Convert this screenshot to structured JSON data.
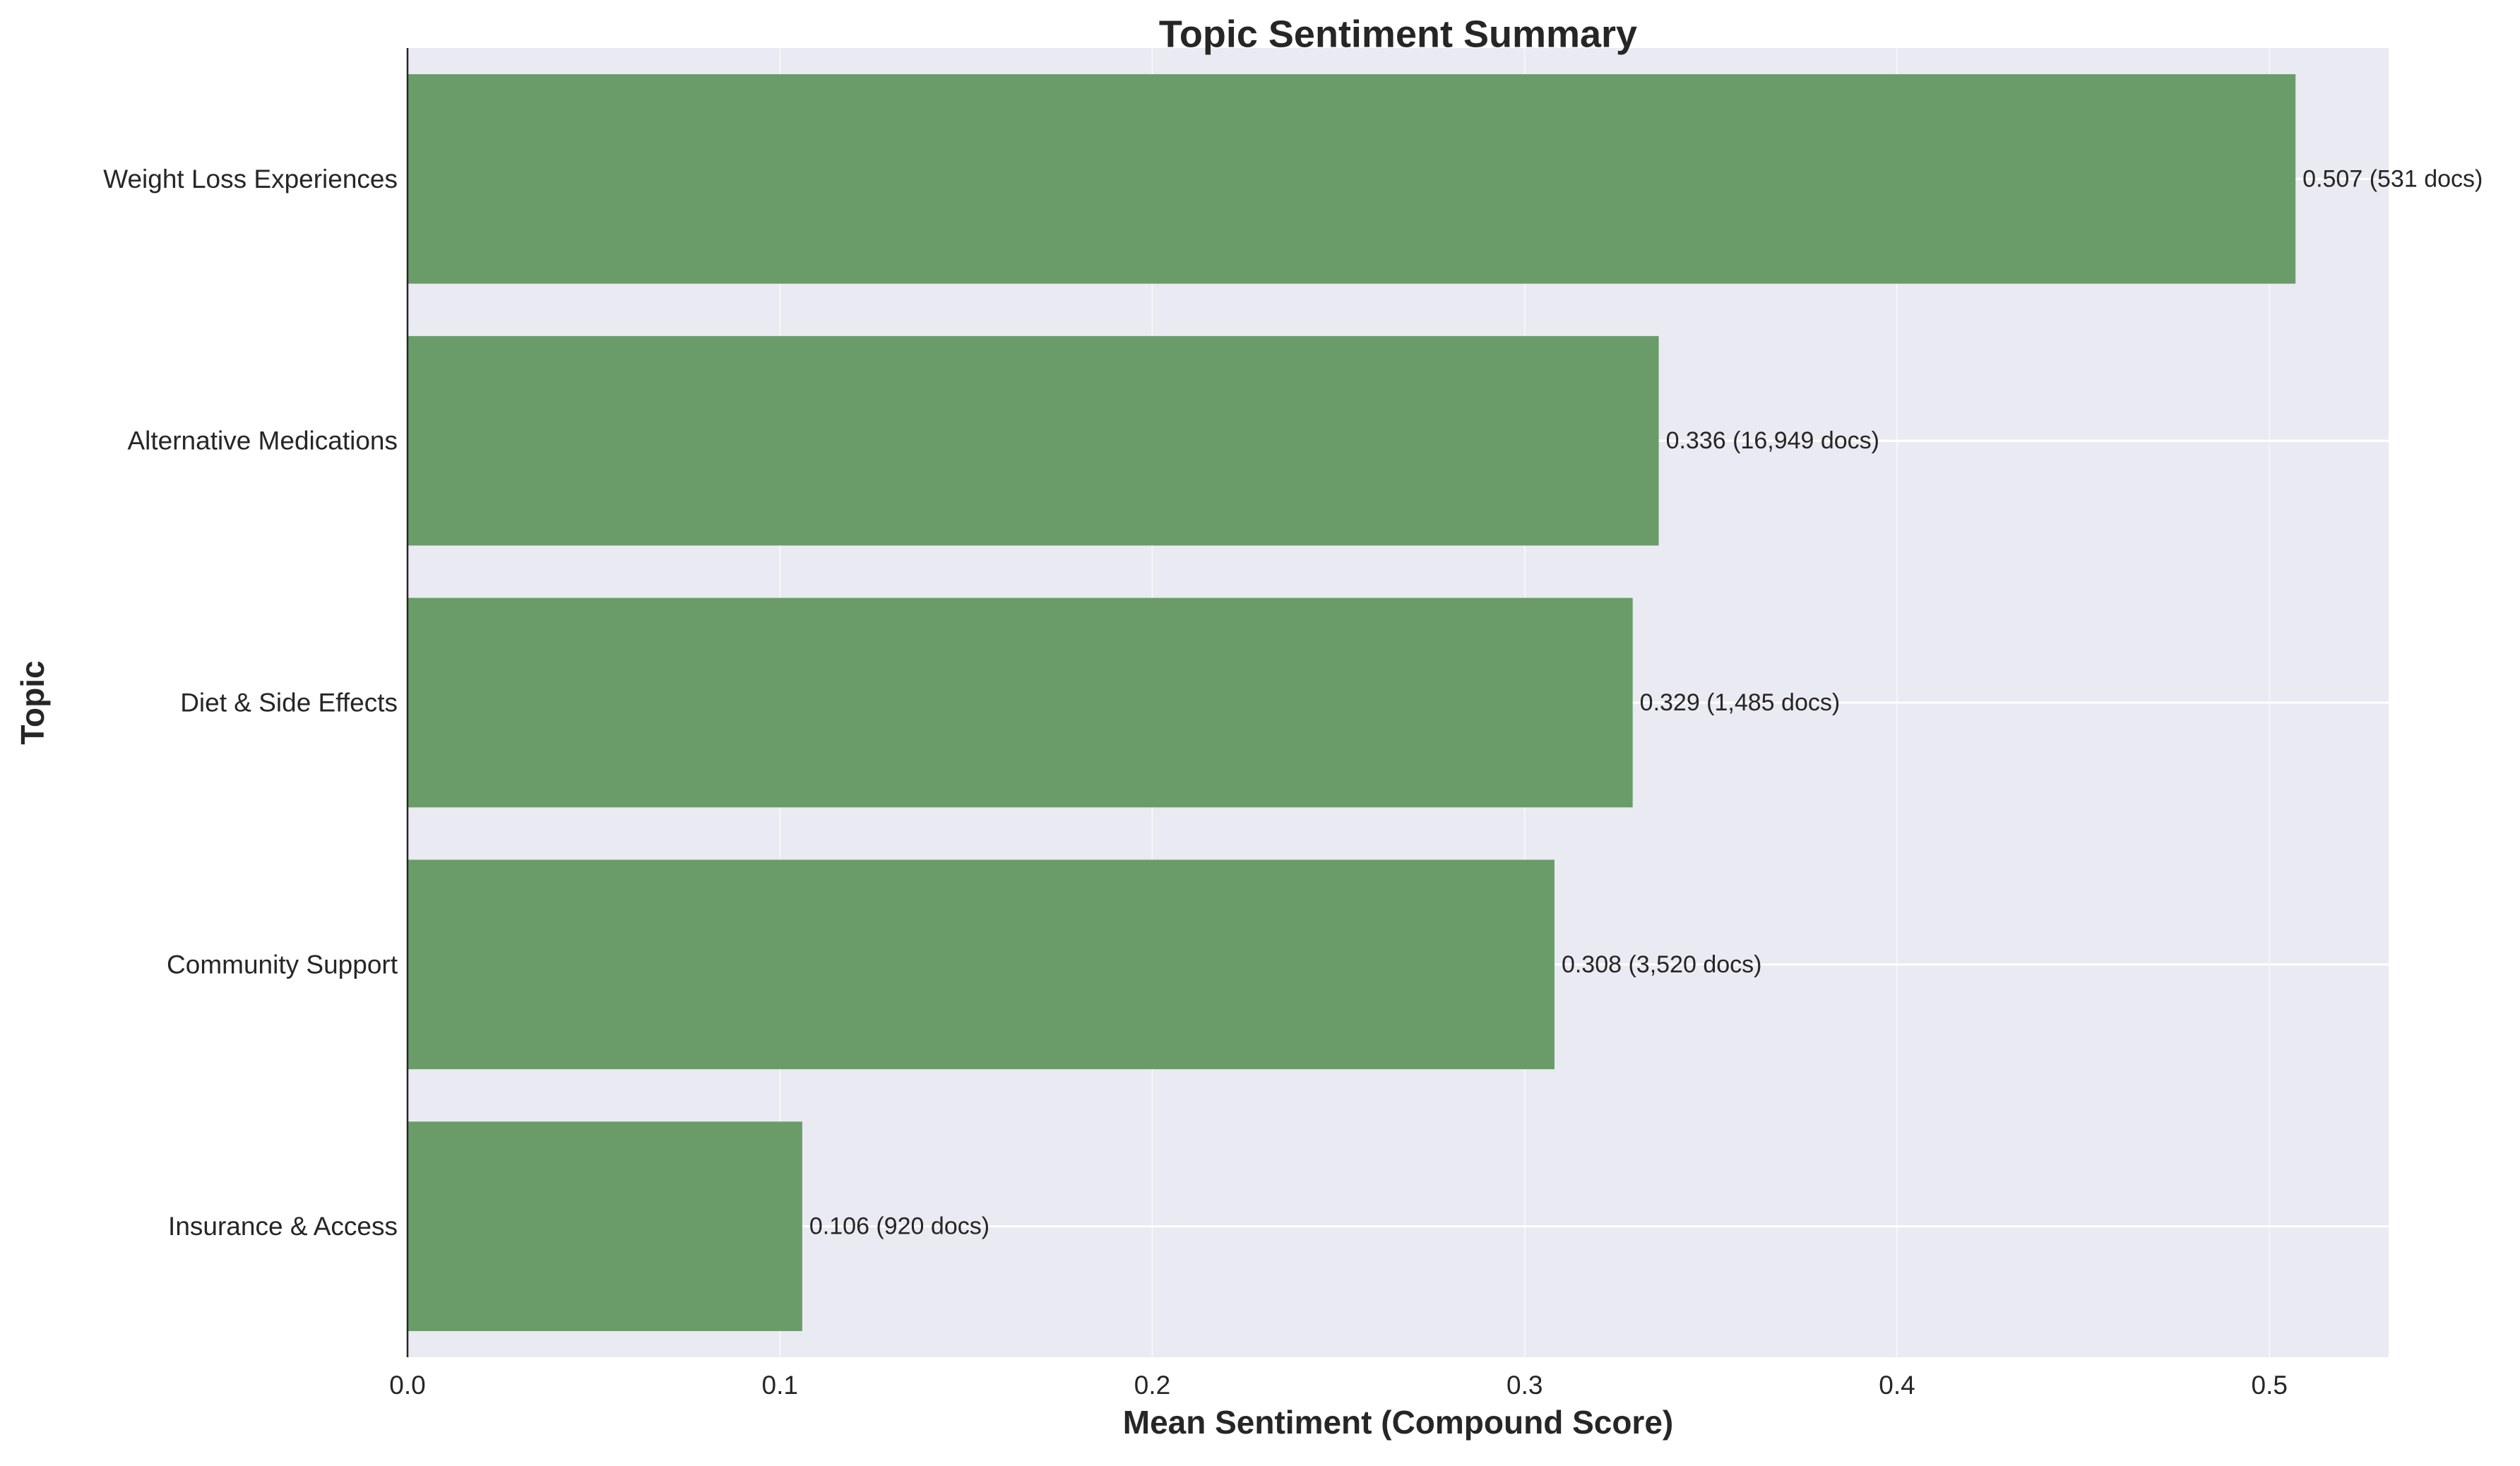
{
  "chart_data": {
    "type": "bar",
    "orientation": "horizontal",
    "title": "Topic Sentiment Summary",
    "xlabel": "Mean Sentiment (Compound Score)",
    "ylabel": "Topic",
    "xlim": [
      0,
      0.532
    ],
    "x_ticks": [
      0.0,
      0.1,
      0.2,
      0.3,
      0.4,
      0.5
    ],
    "x_tick_labels": [
      "0.0",
      "0.1",
      "0.2",
      "0.3",
      "0.4",
      "0.5"
    ],
    "categories": [
      "Weight Loss Experiences",
      "Alternative Medications",
      "Diet & Side Effects",
      "Community Support",
      "Insurance & Access"
    ],
    "values": [
      0.507,
      0.336,
      0.329,
      0.308,
      0.106
    ],
    "data_labels": [
      "0.507 (531 docs)",
      "0.336 (16,949 docs)",
      "0.329 (1,485 docs)",
      "0.308 (3,520 docs)",
      "0.106 (920 docs)"
    ],
    "grid": true,
    "legend": "none",
    "colors": {
      "bar": "#6a9c6a",
      "plot_background": "#eaeaf2",
      "grid": "#ffffff",
      "text": "#262626",
      "spine": "#262626"
    }
  }
}
